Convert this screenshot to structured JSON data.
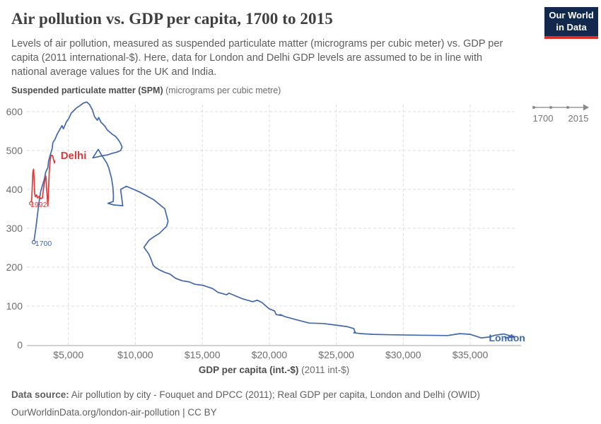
{
  "header": {
    "title": "Air pollution vs. GDP per capita, 1700 to 2015",
    "subtitle": "Levels of air pollution, measured as suspended particulate matter (micrograms per cubic meter) vs. GDP per capita (2011 international-$). Here, data for London and Delhi GDP levels are assumed to be in line with national average values for the UK and India.",
    "logo": {
      "line1": "Our World",
      "line2": "in Data",
      "bg_color": "#12294d",
      "accent_color": "#dc2e27"
    }
  },
  "chart_data": {
    "type": "line",
    "title": "Air pollution vs. GDP per capita, 1700 to 2015",
    "xlabel_bold": "GDP per capita (int.-$)",
    "xlabel_note": " (2011 int-$)",
    "ylabel_bold": "Suspended particulate matter (SPM)",
    "ylabel_note": " (micrograms per cubic metre)",
    "grid": true,
    "legend_position": "inline-labels",
    "xlim": [
      1900,
      38800
    ],
    "ylim": [
      0,
      600
    ],
    "x_ticks": [
      {
        "value": 5000,
        "label": "$5,000"
      },
      {
        "value": 10000,
        "label": "$10,000"
      },
      {
        "value": 15000,
        "label": "$15,000"
      },
      {
        "value": 20000,
        "label": "$20,000"
      },
      {
        "value": 25000,
        "label": "$25,000"
      },
      {
        "value": 30000,
        "label": "$30,000"
      },
      {
        "value": 35000,
        "label": "$35,000"
      }
    ],
    "y_ticks": [
      {
        "value": 0,
        "label": "0"
      },
      {
        "value": 100,
        "label": "100"
      },
      {
        "value": 200,
        "label": "200"
      },
      {
        "value": 300,
        "label": "300"
      },
      {
        "value": 400,
        "label": "400"
      },
      {
        "value": 500,
        "label": "500"
      },
      {
        "value": 600,
        "label": "600"
      }
    ],
    "timeline": {
      "start_label": "1700",
      "end_label": "2015"
    },
    "series": [
      {
        "name": "London",
        "color": "#4267ac",
        "start_year_label": "1700",
        "year_label_offset": [
          2,
          5
        ],
        "name_label": {
          "x": 36400,
          "y": 9
        },
        "label_size": 14,
        "points": [
          [
            2416,
            264
          ],
          [
            2570,
            300
          ],
          [
            2730,
            345
          ],
          [
            2840,
            375
          ],
          [
            2940,
            396
          ],
          [
            3210,
            427
          ],
          [
            3310,
            445
          ],
          [
            3470,
            456
          ],
          [
            3520,
            473
          ],
          [
            3630,
            487
          ],
          [
            3790,
            505
          ],
          [
            3840,
            520
          ],
          [
            4000,
            529
          ],
          [
            4160,
            542
          ],
          [
            4370,
            555
          ],
          [
            4520,
            564
          ],
          [
            4630,
            556
          ],
          [
            4840,
            573
          ],
          [
            5050,
            584
          ],
          [
            5210,
            596
          ],
          [
            5580,
            609
          ],
          [
            5840,
            615
          ],
          [
            6110,
            622
          ],
          [
            6370,
            625
          ],
          [
            6580,
            618
          ],
          [
            6790,
            605
          ],
          [
            6950,
            587
          ],
          [
            7160,
            578
          ],
          [
            7270,
            585
          ],
          [
            7430,
            573
          ],
          [
            7740,
            562
          ],
          [
            7900,
            553
          ],
          [
            8110,
            547
          ],
          [
            8270,
            542
          ],
          [
            8530,
            536
          ],
          [
            8740,
            527
          ],
          [
            8900,
            518
          ],
          [
            9010,
            509
          ],
          [
            8900,
            500
          ],
          [
            8640,
            496
          ],
          [
            8270,
            493
          ],
          [
            7950,
            489
          ],
          [
            7580,
            487
          ],
          [
            7210,
            484
          ],
          [
            6820,
            481
          ],
          [
            7100,
            496
          ],
          [
            7230,
            503
          ],
          [
            7500,
            487
          ],
          [
            7850,
            469
          ],
          [
            8010,
            456
          ],
          [
            8220,
            429
          ],
          [
            8320,
            407
          ],
          [
            8360,
            385
          ],
          [
            8350,
            369
          ],
          [
            7950,
            364
          ],
          [
            8400,
            360
          ],
          [
            9060,
            358
          ],
          [
            8900,
            400
          ],
          [
            9330,
            408
          ],
          [
            9740,
            402
          ],
          [
            10330,
            393
          ],
          [
            11380,
            373
          ],
          [
            12200,
            350
          ],
          [
            12440,
            318
          ],
          [
            12330,
            305
          ],
          [
            11800,
            287
          ],
          [
            11380,
            278
          ],
          [
            11010,
            269
          ],
          [
            10640,
            251
          ],
          [
            11010,
            233
          ],
          [
            11170,
            220
          ],
          [
            11330,
            205
          ],
          [
            11500,
            199
          ],
          [
            11800,
            193
          ],
          [
            12170,
            187
          ],
          [
            12590,
            182
          ],
          [
            12860,
            175
          ],
          [
            13020,
            171
          ],
          [
            13490,
            165
          ],
          [
            14020,
            162
          ],
          [
            14440,
            156
          ],
          [
            15070,
            153
          ],
          [
            15760,
            145
          ],
          [
            16180,
            135
          ],
          [
            16810,
            129
          ],
          [
            17000,
            133
          ],
          [
            18030,
            118
          ],
          [
            18770,
            111
          ],
          [
            19100,
            115
          ],
          [
            19450,
            109
          ],
          [
            19980,
            93
          ],
          [
            20400,
            87
          ],
          [
            20510,
            78
          ],
          [
            21030,
            75
          ],
          [
            20800,
            78
          ],
          [
            21140,
            73
          ],
          [
            22090,
            64
          ],
          [
            22990,
            56
          ],
          [
            24040,
            55
          ],
          [
            24880,
            51
          ],
          [
            25780,
            47
          ],
          [
            26310,
            42
          ],
          [
            26400,
            33
          ],
          [
            26310,
            31
          ],
          [
            26840,
            29
          ],
          [
            27730,
            27
          ],
          [
            29000,
            26
          ],
          [
            31000,
            25
          ],
          [
            33320,
            24
          ],
          [
            34220,
            29
          ],
          [
            35000,
            27
          ],
          [
            35800,
            18
          ],
          [
            36400,
            20
          ],
          [
            36860,
            25
          ],
          [
            37500,
            28
          ],
          [
            37910,
            24
          ],
          [
            38280,
            22
          ],
          [
            37600,
            18
          ],
          [
            38300,
            20
          ]
        ]
      },
      {
        "name": "Delhi",
        "color": "#de3a3a",
        "start_year_label": "1992",
        "year_label_offset": [
          -1,
          5
        ],
        "name_label": {
          "x": 4420,
          "y": 478
        },
        "label_size": 15,
        "points": [
          [
            2220,
            364
          ],
          [
            2270,
            380
          ],
          [
            2350,
            445
          ],
          [
            2400,
            452
          ],
          [
            2450,
            420
          ],
          [
            2480,
            390
          ],
          [
            2530,
            381
          ],
          [
            2620,
            386
          ],
          [
            2700,
            378
          ],
          [
            2830,
            382
          ],
          [
            2930,
            376
          ],
          [
            3060,
            378
          ],
          [
            3140,
            402
          ],
          [
            3270,
            430
          ],
          [
            3320,
            434
          ],
          [
            3370,
            406
          ],
          [
            3430,
            374
          ],
          [
            3470,
            357
          ],
          [
            3520,
            399
          ],
          [
            3570,
            443
          ],
          [
            3630,
            473
          ],
          [
            3690,
            486
          ],
          [
            3740,
            488
          ],
          [
            3830,
            486
          ],
          [
            3900,
            476
          ],
          [
            3960,
            468
          ],
          [
            3990,
            473
          ]
        ]
      }
    ]
  },
  "footer": {
    "source_bold": "Data source:",
    "source_text": " Air pollution by city - Fouquet and DPCC (2011); Real GDP per capita, London and Delhi (OWID)",
    "license_text": "OurWorldinData.org/london-air-pollution | CC BY"
  }
}
